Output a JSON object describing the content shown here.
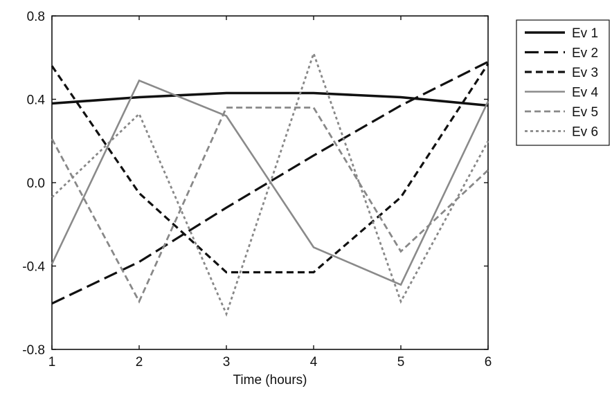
{
  "chart_data": {
    "type": "line",
    "title": "",
    "xlabel": "Time (hours)",
    "ylabel": "",
    "xlim": [
      1,
      6
    ],
    "ylim": [
      -0.8,
      0.8
    ],
    "x_ticks": [
      1,
      2,
      3,
      4,
      5,
      6
    ],
    "y_ticks": [
      -0.8,
      -0.4,
      0.0,
      0.4,
      0.8
    ],
    "x_tick_labels": [
      "1",
      "2",
      "3",
      "4",
      "5",
      "6"
    ],
    "y_tick_labels": [
      "-0.8",
      "-0.4",
      "0.0",
      "0.4",
      "0.8"
    ],
    "grid": false,
    "legend_position": "outside-top-right",
    "x": [
      1,
      2,
      3,
      4,
      5,
      6
    ],
    "series": [
      {
        "name": "Ev 1",
        "style": "solid",
        "values": [
          0.38,
          0.41,
          0.43,
          0.43,
          0.41,
          0.37
        ]
      },
      {
        "name": "Ev 2",
        "style": "long-dash",
        "values": [
          -0.58,
          -0.38,
          -0.12,
          0.13,
          0.37,
          0.58
        ]
      },
      {
        "name": "Ev 3",
        "style": "short-dash",
        "values": [
          0.56,
          -0.05,
          -0.43,
          -0.43,
          -0.07,
          0.57
        ]
      },
      {
        "name": "Ev 4",
        "style": "light-solid",
        "values": [
          -0.39,
          0.49,
          0.32,
          -0.31,
          -0.49,
          0.39
        ]
      },
      {
        "name": "Ev 5",
        "style": "light-dash",
        "values": [
          0.21,
          -0.57,
          0.36,
          0.36,
          -0.33,
          0.06
        ]
      },
      {
        "name": "Ev 6",
        "style": "light-dot",
        "values": [
          -0.07,
          0.33,
          -0.63,
          0.62,
          -0.57,
          0.2
        ]
      }
    ]
  }
}
